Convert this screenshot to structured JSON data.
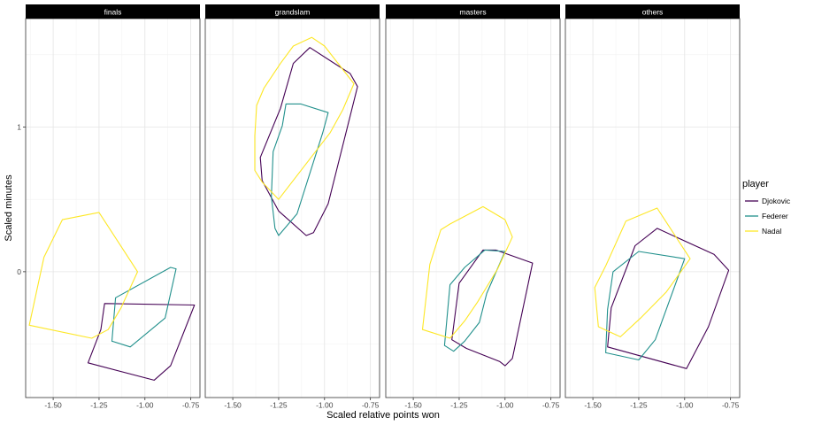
{
  "chart_data": {
    "type": "line",
    "subtype": "faceted convex hulls (closed polygons)",
    "xlabel": "Scaled relative points won",
    "ylabel": "Scaled minutes",
    "xlim": [
      -1.65,
      -0.7
    ],
    "ylim": [
      -0.87,
      1.75
    ],
    "x_ticks": [
      -1.5,
      -1.25,
      -1.0,
      -0.75
    ],
    "x_tick_labels": [
      "-1.50",
      "-1.25",
      "-1.00",
      "-0.75"
    ],
    "y_ticks": [
      0,
      1
    ],
    "y_tick_labels": [
      "0",
      "1"
    ],
    "grid": true,
    "legend": {
      "title": "player",
      "position": "right"
    },
    "series": [
      {
        "name": "Djokovic",
        "color": "#440154"
      },
      {
        "name": "Federer",
        "color": "#21908C"
      },
      {
        "name": "Nadal",
        "color": "#FDE725"
      }
    ],
    "facets": [
      {
        "label": "finals",
        "hulls": {
          "Djokovic": [
            [
              -1.22,
              -0.22
            ],
            [
              -0.73,
              -0.23
            ],
            [
              -0.86,
              -0.65
            ],
            [
              -0.95,
              -0.75
            ],
            [
              -1.31,
              -0.63
            ],
            [
              -1.24,
              -0.4
            ]
          ],
          "Federer": [
            [
              -1.16,
              -0.18
            ],
            [
              -0.86,
              0.03
            ],
            [
              -0.83,
              0.02
            ],
            [
              -0.89,
              -0.32
            ],
            [
              -1.08,
              -0.52
            ],
            [
              -1.18,
              -0.48
            ]
          ],
          "Nadal": [
            [
              -1.45,
              0.36
            ],
            [
              -1.25,
              0.41
            ],
            [
              -1.04,
              0.0
            ],
            [
              -1.13,
              -0.25
            ],
            [
              -1.2,
              -0.4
            ],
            [
              -1.29,
              -0.46
            ],
            [
              -1.63,
              -0.37
            ],
            [
              -1.55,
              0.1
            ]
          ]
        }
      },
      {
        "label": "grandslam",
        "hulls": {
          "Djokovic": [
            [
              -1.24,
              1.13
            ],
            [
              -1.17,
              1.44
            ],
            [
              -1.08,
              1.55
            ],
            [
              -0.86,
              1.37
            ],
            [
              -0.82,
              1.28
            ],
            [
              -0.98,
              0.47
            ],
            [
              -1.06,
              0.27
            ],
            [
              -1.1,
              0.25
            ],
            [
              -1.25,
              0.42
            ],
            [
              -1.34,
              0.63
            ],
            [
              -1.35,
              0.79
            ]
          ],
          "Federer": [
            [
              -1.23,
              1.01
            ],
            [
              -1.21,
              1.16
            ],
            [
              -1.13,
              1.16
            ],
            [
              -0.98,
              1.1
            ],
            [
              -1.01,
              0.96
            ],
            [
              -1.15,
              0.4
            ],
            [
              -1.25,
              0.25
            ],
            [
              -1.27,
              0.3
            ],
            [
              -1.29,
              0.52
            ],
            [
              -1.28,
              0.83
            ]
          ],
          "Nadal": [
            [
              -1.37,
              1.15
            ],
            [
              -1.33,
              1.27
            ],
            [
              -1.24,
              1.44
            ],
            [
              -1.17,
              1.56
            ],
            [
              -1.07,
              1.62
            ],
            [
              -1.0,
              1.56
            ],
            [
              -0.84,
              1.3
            ],
            [
              -0.9,
              1.12
            ],
            [
              -0.97,
              0.96
            ],
            [
              -1.25,
              0.5
            ],
            [
              -1.34,
              0.62
            ],
            [
              -1.38,
              0.7
            ],
            [
              -1.38,
              0.94
            ]
          ]
        }
      },
      {
        "label": "masters",
        "hulls": {
          "Djokovic": [
            [
              -1.25,
              -0.08
            ],
            [
              -1.12,
              0.15
            ],
            [
              -1.05,
              0.15
            ],
            [
              -0.85,
              0.06
            ],
            [
              -0.96,
              -0.6
            ],
            [
              -1.0,
              -0.65
            ],
            [
              -1.03,
              -0.62
            ],
            [
              -1.21,
              -0.53
            ],
            [
              -1.29,
              -0.47
            ]
          ],
          "Federer": [
            [
              -1.3,
              -0.09
            ],
            [
              -1.22,
              0.03
            ],
            [
              -1.11,
              0.15
            ],
            [
              -1.0,
              0.14
            ],
            [
              -1.1,
              -0.15
            ],
            [
              -1.14,
              -0.35
            ],
            [
              -1.22,
              -0.48
            ],
            [
              -1.28,
              -0.55
            ],
            [
              -1.33,
              -0.51
            ]
          ],
          "Nadal": [
            [
              -1.41,
              0.05
            ],
            [
              -1.35,
              0.29
            ],
            [
              -1.3,
              0.33
            ],
            [
              -1.12,
              0.45
            ],
            [
              -1.0,
              0.36
            ],
            [
              -0.96,
              0.24
            ],
            [
              -1.04,
              0.02
            ],
            [
              -1.15,
              -0.21
            ],
            [
              -1.22,
              -0.34
            ],
            [
              -1.3,
              -0.46
            ],
            [
              -1.45,
              -0.4
            ]
          ]
        }
      },
      {
        "label": "others",
        "hulls": {
          "Djokovic": [
            [
              -1.27,
              0.18
            ],
            [
              -1.15,
              0.3
            ],
            [
              -0.84,
              0.12
            ],
            [
              -0.76,
              0.01
            ],
            [
              -0.87,
              -0.38
            ],
            [
              -0.99,
              -0.67
            ],
            [
              -1.42,
              -0.52
            ],
            [
              -1.4,
              -0.25
            ]
          ],
          "Federer": [
            [
              -1.39,
              0.0
            ],
            [
              -1.25,
              0.14
            ],
            [
              -1.0,
              0.09
            ],
            [
              -1.16,
              -0.47
            ],
            [
              -1.25,
              -0.61
            ],
            [
              -1.43,
              -0.56
            ],
            [
              -1.42,
              -0.26
            ]
          ],
          "Nadal": [
            [
              -1.43,
              0.04
            ],
            [
              -1.32,
              0.35
            ],
            [
              -1.15,
              0.44
            ],
            [
              -0.97,
              0.09
            ],
            [
              -1.1,
              -0.14
            ],
            [
              -1.24,
              -0.32
            ],
            [
              -1.35,
              -0.45
            ],
            [
              -1.47,
              -0.38
            ],
            [
              -1.49,
              -0.11
            ]
          ]
        }
      }
    ]
  }
}
